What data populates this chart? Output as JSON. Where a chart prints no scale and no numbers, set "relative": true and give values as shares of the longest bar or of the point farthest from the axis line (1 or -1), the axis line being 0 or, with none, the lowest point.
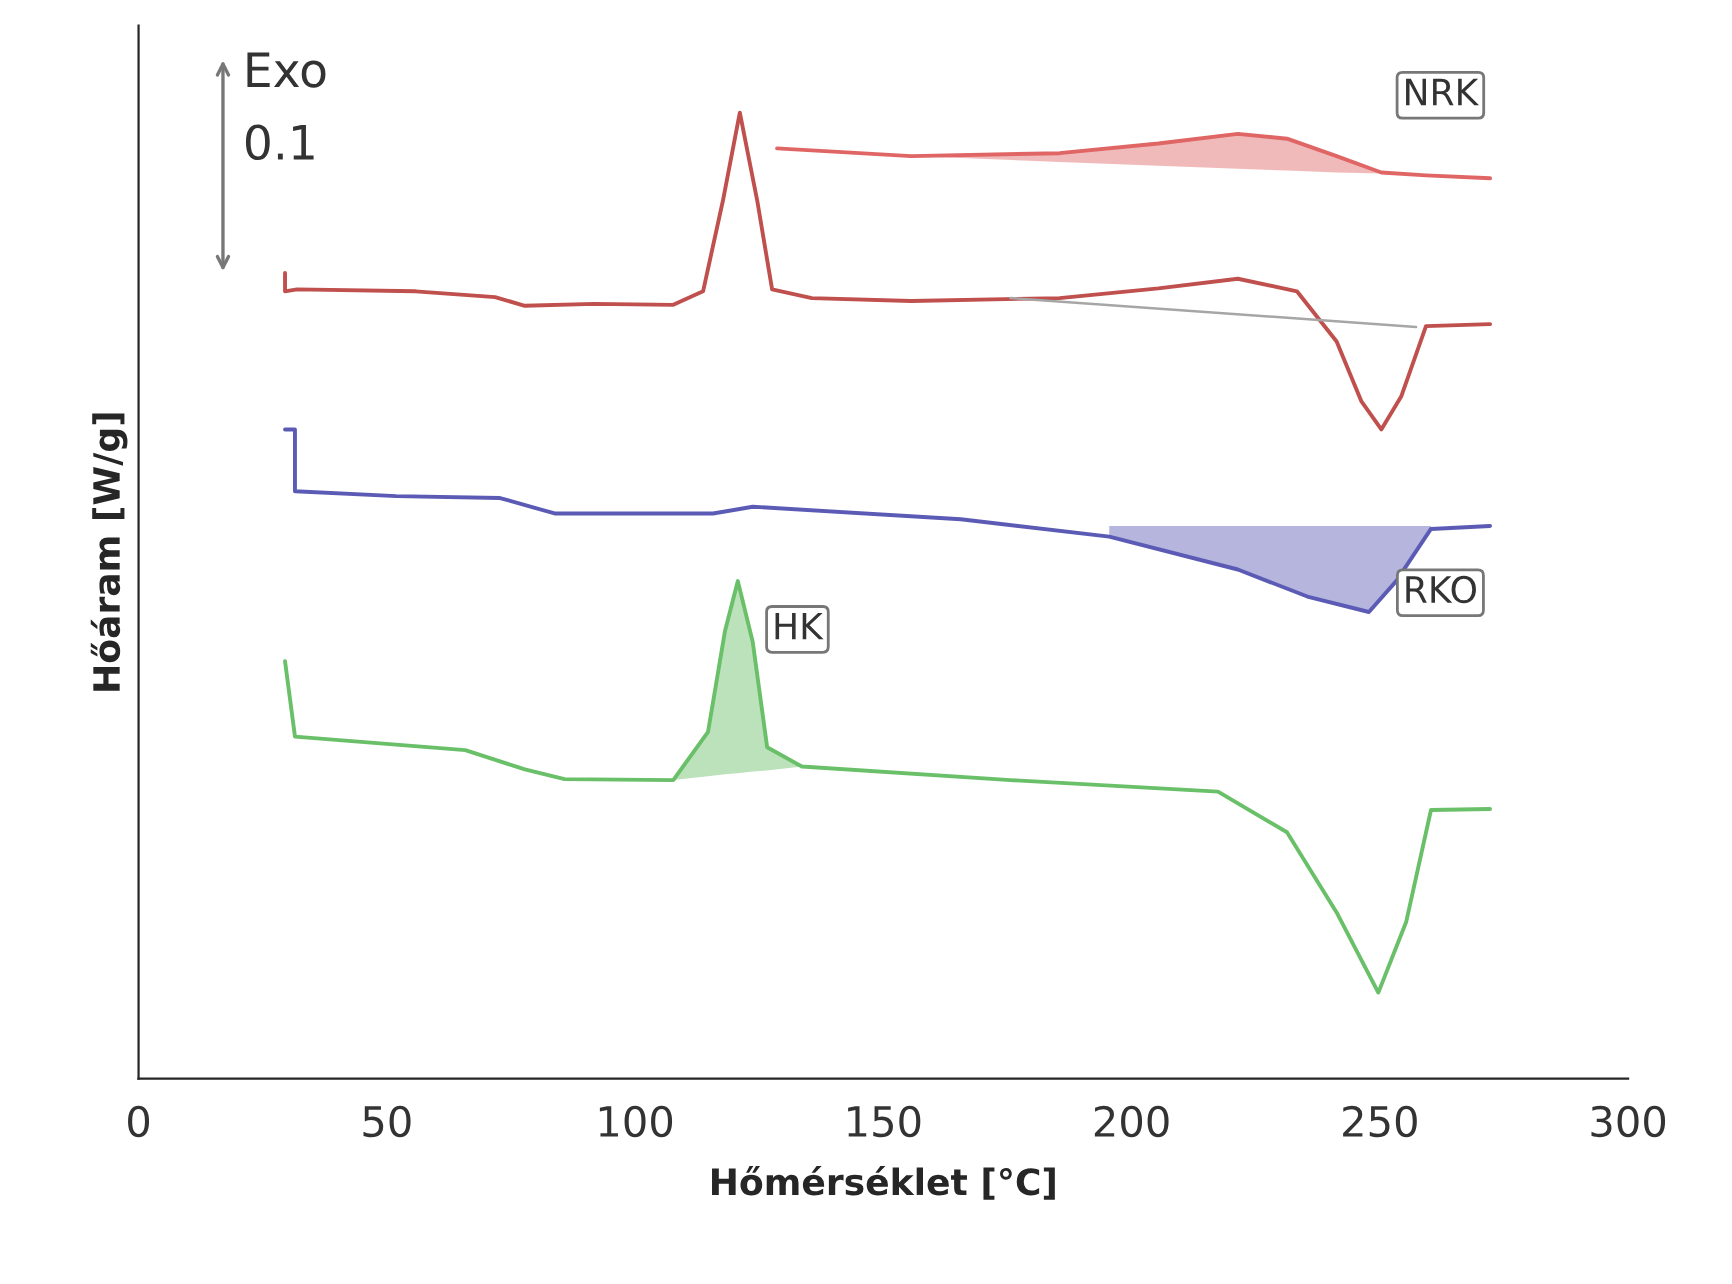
{
  "chart_data": {
    "type": "line",
    "relative": true,
    "xlabel": "Hőmérséklet [°C]",
    "ylabel": "Hőáram [W/g]",
    "xlim": [
      0,
      300
    ],
    "xticks": [
      0,
      50,
      100,
      150,
      200,
      250,
      300
    ],
    "tick_labels": "x",
    "grid": false,
    "annotations": [
      "Exo",
      "0.1"
    ],
    "series": [
      {
        "name": "NRK",
        "color": "#e06666",
        "x": [
          128.6,
          155.6,
          185.5,
          205.4,
          221.4,
          231.3,
          241.3,
          250.3,
          259.3,
          272.2
        ],
        "values": [
          0.963,
          0.955,
          0.958,
          0.968,
          0.978,
          0.973,
          0.955,
          0.938,
          0.935,
          0.932
        ],
        "lower": [
          null,
          0.955,
          0.949,
          0.945,
          0.942,
          0.94,
          0.938,
          0.937,
          null,
          null
        ],
        "upper": [
          null,
          0.955,
          0.958,
          0.968,
          0.978,
          0.973,
          0.955,
          0.938,
          null,
          null
        ]
      },
      {
        "color": "#c0504d",
        "x": [
          29.5,
          29.5,
          31.9,
          55.8,
          71.8,
          77.8,
          91.7,
          107.7,
          113.7,
          117.7,
          121.1,
          124.6,
          127.6,
          135.6,
          155.6,
          185.5,
          205.4,
          221.4,
          233.3,
          241.3,
          246.3,
          250.3,
          254.3,
          259.3,
          272.2
        ],
        "values": [
          0.834,
          0.815,
          0.817,
          0.815,
          0.809,
          0.8,
          0.802,
          0.801,
          0.815,
          0.909,
          1.0,
          0.909,
          0.817,
          0.808,
          0.805,
          0.808,
          0.818,
          0.828,
          0.815,
          0.763,
          0.701,
          0.672,
          0.706,
          0.779,
          0.781
        ]
      },
      {
        "color": "#a6a6a6",
        "x": [
          175.6,
          257.3
        ],
        "values": [
          0.808,
          0.778
        ]
      },
      {
        "name": "RKO",
        "color": "#5b5bb5",
        "x": [
          29.5,
          31.5,
          31.5,
          51.9,
          72.8,
          83.8,
          115.7,
          123.7,
          165.6,
          195.5,
          221.4,
          235.4,
          247.8,
          253.3,
          260.3,
          272.2
        ],
        "values": [
          0.672,
          0.672,
          0.608,
          0.603,
          0.601,
          0.585,
          0.585,
          0.592,
          0.579,
          0.561,
          0.527,
          0.499,
          0.483,
          0.515,
          0.569,
          0.572
        ],
        "lower": [
          null,
          null,
          null,
          null,
          null,
          null,
          null,
          null,
          null,
          0.561,
          0.527,
          0.499,
          0.483,
          0.515,
          0.569,
          null
        ],
        "upper": [
          null,
          null,
          null,
          null,
          null,
          null,
          null,
          null,
          null,
          0.572,
          0.572,
          0.572,
          0.572,
          0.572,
          0.572,
          null
        ]
      },
      {
        "name": "HK",
        "color": "#6abf69",
        "x": [
          29.5,
          31.5,
          65.8,
          77.8,
          85.8,
          107.7,
          114.7,
          118.1,
          120.7,
          123.7,
          126.6,
          133.6,
          175.6,
          217.4,
          231.3,
          241.3,
          249.7,
          255.3,
          260.3,
          272.2
        ],
        "values": [
          0.432,
          0.354,
          0.34,
          0.32,
          0.31,
          0.309,
          0.359,
          0.463,
          0.515,
          0.452,
          0.343,
          0.323,
          0.309,
          0.297,
          0.255,
          0.172,
          0.089,
          0.162,
          0.278,
          0.279
        ],
        "lower": [
          null,
          null,
          null,
          null,
          null,
          0.309,
          0.313,
          0.315,
          0.316,
          0.318,
          0.319,
          0.323,
          null,
          null,
          null,
          null,
          null,
          null,
          null,
          null
        ],
        "upper": [
          null,
          null,
          null,
          null,
          null,
          0.309,
          0.359,
          0.463,
          0.515,
          0.452,
          0.343,
          0.323,
          null,
          null,
          null,
          null,
          null,
          null,
          null,
          null
        ]
      }
    ]
  }
}
